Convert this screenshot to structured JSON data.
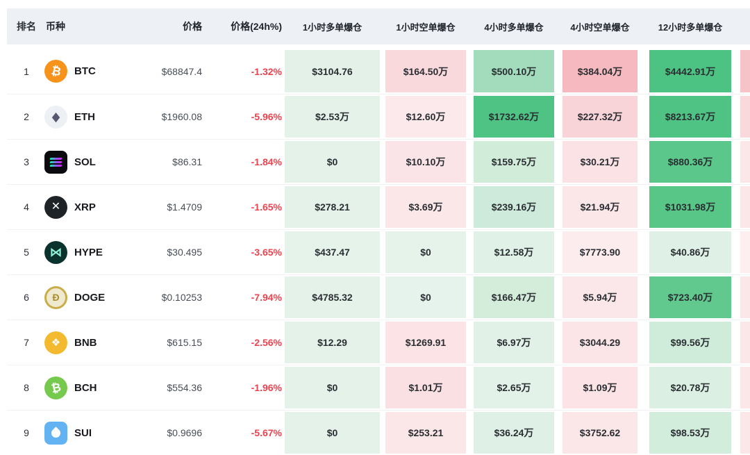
{
  "chart_data": {
    "type": "table",
    "columns": [
      "排名",
      "币种",
      "价格",
      "价格(24h%)",
      "1小时多单爆仓",
      "1小时空单爆仓",
      "4小时多单爆仓",
      "4小时空单爆仓",
      "12小时多单爆仓"
    ],
    "rows": [
      {
        "rank": "1",
        "symbol": "BTC",
        "price": "$68847.4",
        "change": "-1.32%",
        "icon": {
          "bg": "#f7931a",
          "fg": "#ffffff",
          "glyph": "₿",
          "shape": "circle",
          "style": "btc"
        },
        "cells": [
          {
            "v": "$3104.76",
            "bg": "#e3f1e8"
          },
          {
            "v": "$164.50万",
            "bg": "#f9d9dc"
          },
          {
            "v": "$500.10万",
            "bg": "#a2dcbc"
          },
          {
            "v": "$384.04万",
            "bg": "#f5b9bf"
          },
          {
            "v": "$4442.91万",
            "bg": "#4dc383"
          }
        ],
        "cutoff_bg": "#f6c3c8"
      },
      {
        "rank": "2",
        "symbol": "ETH",
        "price": "$1960.08",
        "change": "-5.96%",
        "icon": {
          "bg": "#edf0f4",
          "fg": "#55586e",
          "glyph": "◆",
          "shape": "circle",
          "style": "eth"
        },
        "cells": [
          {
            "v": "$2.53万",
            "bg": "#e4f2e9"
          },
          {
            "v": "$12.60万",
            "bg": "#fce9eb"
          },
          {
            "v": "$1732.62万",
            "bg": "#4ec384"
          },
          {
            "v": "$227.32万",
            "bg": "#f8d4d8"
          },
          {
            "v": "$8213.67万",
            "bg": "#4ec384"
          }
        ],
        "cutoff_bg": "#f9d9dc"
      },
      {
        "rank": "3",
        "symbol": "SOL",
        "price": "$86.31",
        "change": "-1.84%",
        "icon": {
          "bg": "#0b0b0f",
          "fg": "#00ffa3",
          "glyph": "",
          "shape": "square",
          "style": "bars"
        },
        "cells": [
          {
            "v": "$0",
            "bg": "#e4f2e9"
          },
          {
            "v": "$10.10万",
            "bg": "#fbe4e7"
          },
          {
            "v": "$159.75万",
            "bg": "#d2ecda"
          },
          {
            "v": "$30.21万",
            "bg": "#fbe2e5"
          },
          {
            "v": "$880.36万",
            "bg": "#5bc78a"
          }
        ],
        "cutoff_bg": "#fbe6e8"
      },
      {
        "rank": "4",
        "symbol": "XRP",
        "price": "$1.4709",
        "change": "-1.65%",
        "icon": {
          "bg": "#1e2328",
          "fg": "#ffffff",
          "glyph": "✕",
          "shape": "circle",
          "style": "xrp"
        },
        "cells": [
          {
            "v": "$278.21",
            "bg": "#e4f2e9"
          },
          {
            "v": "$3.69万",
            "bg": "#fbe6e8"
          },
          {
            "v": "$239.16万",
            "bg": "#cdeada"
          },
          {
            "v": "$21.94万",
            "bg": "#fbe6e8"
          },
          {
            "v": "$1031.98万",
            "bg": "#57c687"
          }
        ],
        "cutoff_bg": "#fbe6e8"
      },
      {
        "rank": "5",
        "symbol": "HYPE",
        "price": "$30.495",
        "change": "-3.65%",
        "icon": {
          "bg": "#0b332e",
          "fg": "#8ef7dd",
          "glyph": "⋈",
          "shape": "circle",
          "style": "hype"
        },
        "cells": [
          {
            "v": "$437.47",
            "bg": "#e6f3eb"
          },
          {
            "v": "$0",
            "bg": "#e6f3eb"
          },
          {
            "v": "$12.58万",
            "bg": "#e0f1e7"
          },
          {
            "v": "$7773.90",
            "bg": "#fcecee"
          },
          {
            "v": "$40.86万",
            "bg": "#dff0e6"
          }
        ],
        "cutoff_bg": "#fdeff0"
      },
      {
        "rank": "6",
        "symbol": "DOGE",
        "price": "$0.10253",
        "change": "-7.94%",
        "icon": {
          "bg": "#efe9cf",
          "fg": "#a98e2f",
          "glyph": "Ð",
          "shape": "circle",
          "style": "doge"
        },
        "cells": [
          {
            "v": "$4785.32",
            "bg": "#e4f2e9"
          },
          {
            "v": "$0",
            "bg": "#e6f3ec"
          },
          {
            "v": "$166.47万",
            "bg": "#d3edda"
          },
          {
            "v": "$5.94万",
            "bg": "#fbe7e9"
          },
          {
            "v": "$723.40万",
            "bg": "#61c98e"
          }
        ],
        "cutoff_bg": "#fbe6e8"
      },
      {
        "rank": "7",
        "symbol": "BNB",
        "price": "$615.15",
        "change": "-2.56%",
        "icon": {
          "bg": "#f3ba2f",
          "fg": "#ffffff",
          "glyph": "❖",
          "shape": "circle",
          "style": "bnb"
        },
        "cells": [
          {
            "v": "$12.29",
            "bg": "#e4f2e9"
          },
          {
            "v": "$1269.91",
            "bg": "#fbe3e6"
          },
          {
            "v": "$6.97万",
            "bg": "#e1f1e8"
          },
          {
            "v": "$3044.29",
            "bg": "#fbe5e7"
          },
          {
            "v": "$99.56万",
            "bg": "#cfecda"
          }
        ],
        "cutoff_bg": "#fbe6e8"
      },
      {
        "rank": "8",
        "symbol": "BCH",
        "price": "$554.36",
        "change": "-1.96%",
        "icon": {
          "bg": "#75c94c",
          "fg": "#ffffff",
          "glyph": "₿",
          "shape": "circle",
          "style": "bch"
        },
        "cells": [
          {
            "v": "$0",
            "bg": "#e4f2e9"
          },
          {
            "v": "$1.01万",
            "bg": "#fadfe3"
          },
          {
            "v": "$2.65万",
            "bg": "#e3f2e9"
          },
          {
            "v": "$1.09万",
            "bg": "#fbe3e6"
          },
          {
            "v": "$20.78万",
            "bg": "#dbefe3"
          }
        ],
        "cutoff_bg": "#fbe6e8"
      },
      {
        "rank": "9",
        "symbol": "SUI",
        "price": "$0.9696",
        "change": "-5.67%",
        "icon": {
          "bg": "#63b3f3",
          "fg": "#ffffff",
          "glyph": "",
          "shape": "square",
          "style": "drop"
        },
        "cells": [
          {
            "v": "$0",
            "bg": "#e4f2e9"
          },
          {
            "v": "$253.21",
            "bg": "#fbe6e8"
          },
          {
            "v": "$36.24万",
            "bg": "#dff0e6"
          },
          {
            "v": "$3752.62",
            "bg": "#fbe6e8"
          },
          {
            "v": "$98.53万",
            "bg": "#d3eddc"
          }
        ],
        "cutoff_bg": "#fbe6e8"
      }
    ]
  },
  "colors": {
    "header_bg": "#edf0f4",
    "row_divider": "#f1f2f4",
    "change_negative": "#f0424e",
    "long_strong_green": "#4ec384",
    "short_strong_red": "#f5b9bf"
  }
}
